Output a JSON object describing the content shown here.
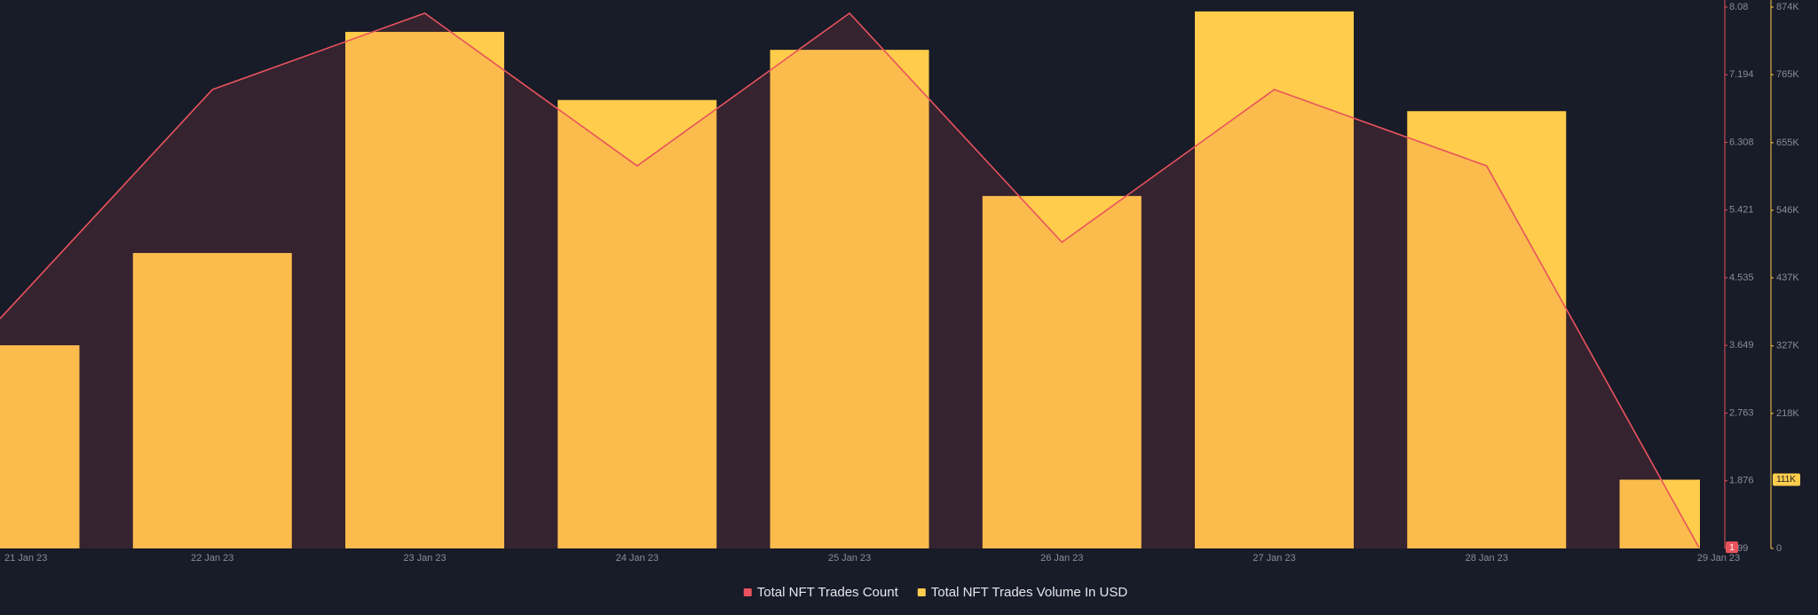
{
  "chart_data": {
    "type": "combo",
    "categories": [
      "21 Jan 23",
      "22 Jan 23",
      "23 Jan 23",
      "24 Jan 23",
      "25 Jan 23",
      "26 Jan 23",
      "27 Jan 23",
      "28 Jan 23",
      "29 Jan 23"
    ],
    "series": [
      {
        "name": "Total NFT Trades Count",
        "type": "line",
        "color": "#e9535d",
        "axis": "y",
        "values": [
          4,
          7,
          8,
          6,
          8,
          5,
          7,
          6,
          1
        ]
      },
      {
        "name": "Total NFT Trades Volume In USD",
        "type": "bar",
        "color": "#ffcd4b",
        "axis": "y2",
        "values": [
          328000,
          477000,
          834000,
          724000,
          805000,
          569000,
          867000,
          706000,
          111000
        ],
        "value_labels": [
          null,
          null,
          null,
          null,
          null,
          null,
          null,
          null,
          "111K"
        ]
      }
    ],
    "ylim": [
      0.99,
      8.08
    ],
    "yticks": [
      0.99,
      1.876,
      2.763,
      3.649,
      4.535,
      5.421,
      6.308,
      7.194,
      8.08
    ],
    "y2lim": [
      0,
      874000
    ],
    "y2ticks": [
      0,
      {
        "value": 218000,
        "label": "218K"
      },
      {
        "value": 327000,
        "label": "327K"
      },
      {
        "value": 437000,
        "label": "437K"
      },
      {
        "value": 546000,
        "label": "546K"
      },
      {
        "value": 655000,
        "label": "655K"
      },
      {
        "value": 765000,
        "label": "765K"
      },
      {
        "value": 874000,
        "label": "874K"
      }
    ],
    "legend": "bottom"
  }
}
